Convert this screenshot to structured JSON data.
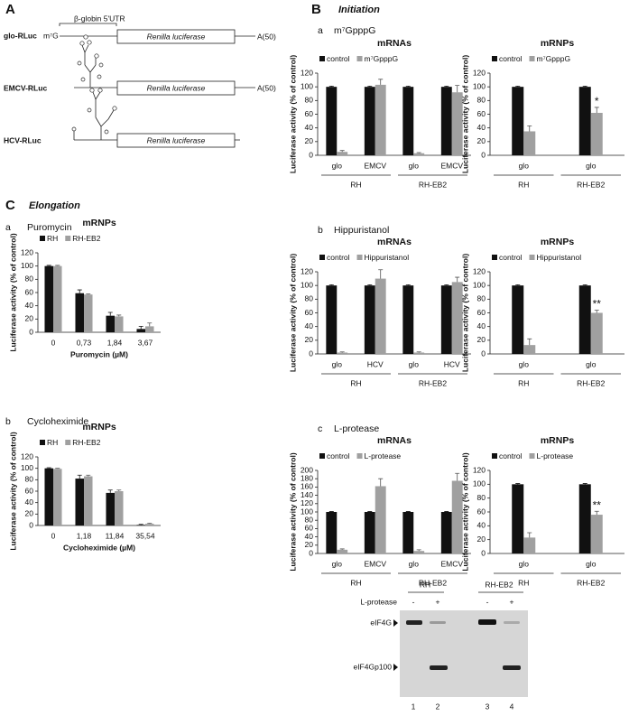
{
  "panels": {
    "A": "A",
    "B": "B",
    "C": "C",
    "B_title": "Initiation",
    "C_title": "Elongation"
  },
  "constructs": {
    "glo": {
      "name": "glo-RLuc",
      "cap": "m⁷G",
      "utr": "β-globin 5'UTR",
      "orf": "Renilla luciferase",
      "tail": "A(50)"
    },
    "emcv": {
      "name": "EMCV-RLuc",
      "orf": "Renilla luciferase",
      "tail": "A(50)"
    },
    "hcv": {
      "name": "HCV-RLuc",
      "orf": "Renilla luciferase"
    }
  },
  "chart_data": [
    {
      "type": "bar",
      "panel": "a",
      "subtitle": "m⁷GpppG",
      "title": "mRNAs",
      "ylabel": "Luciferase activity (% of control)",
      "categories": [
        "glo",
        "EMCV",
        "glo",
        "EMCV"
      ],
      "group_labels": [
        "RH",
        "RH-EB2"
      ],
      "ylim": [
        0,
        120
      ],
      "yticks": [
        0,
        20,
        40,
        60,
        80,
        100,
        120
      ],
      "series": [
        {
          "name": "control",
          "color": "#111111",
          "values": [
            100,
            100,
            100,
            100
          ],
          "errors": [
            1,
            1,
            1,
            1
          ]
        },
        {
          "name": "m⁷GpppG",
          "color": "#a0a0a0",
          "values": [
            5,
            103,
            3,
            92
          ],
          "errors": [
            2,
            8,
            1,
            10
          ]
        }
      ]
    },
    {
      "type": "bar",
      "title": "mRNPs",
      "ylabel": "Luciferase activity (% of control)",
      "categories": [
        "glo",
        "glo"
      ],
      "group_labels": [
        "RH",
        "RH-EB2"
      ],
      "ylim": [
        0,
        120
      ],
      "yticks": [
        0,
        20,
        40,
        60,
        80,
        100,
        120
      ],
      "series": [
        {
          "name": "control",
          "color": "#111111",
          "values": [
            100,
            100
          ],
          "errors": [
            1,
            1
          ]
        },
        {
          "name": "m⁷GpppG",
          "color": "#a0a0a0",
          "values": [
            35,
            62
          ],
          "errors": [
            8,
            8
          ],
          "significance": [
            null,
            "*"
          ]
        }
      ]
    },
    {
      "type": "bar",
      "panel": "b",
      "subtitle": "Hippuristanol",
      "title": "mRNAs",
      "ylabel": "Luciferase activity (% of control)",
      "categories": [
        "glo",
        "HCV",
        "glo",
        "HCV"
      ],
      "group_labels": [
        "RH",
        "RH-EB2"
      ],
      "ylim": [
        0,
        120
      ],
      "yticks": [
        0,
        20,
        40,
        60,
        80,
        100,
        120
      ],
      "series": [
        {
          "name": "control",
          "color": "#111111",
          "values": [
            100,
            100,
            100,
            100
          ],
          "errors": [
            1,
            1,
            1,
            1
          ]
        },
        {
          "name": "Hippuristanol",
          "color": "#a0a0a0",
          "values": [
            2,
            110,
            2,
            105
          ],
          "errors": [
            1,
            13,
            1,
            7
          ]
        }
      ]
    },
    {
      "type": "bar",
      "title": "mRNPs",
      "ylabel": "Luciferase activity (% of control)",
      "categories": [
        "glo",
        "glo"
      ],
      "group_labels": [
        "RH",
        "RH-EB2"
      ],
      "ylim": [
        0,
        120
      ],
      "yticks": [
        0,
        20,
        40,
        60,
        80,
        100,
        120
      ],
      "series": [
        {
          "name": "control",
          "color": "#111111",
          "values": [
            100,
            100
          ],
          "errors": [
            1,
            1
          ]
        },
        {
          "name": "Hippuristanol",
          "color": "#a0a0a0",
          "values": [
            13,
            60
          ],
          "errors": [
            9,
            4
          ],
          "significance": [
            null,
            "**"
          ]
        }
      ]
    },
    {
      "type": "bar",
      "panel": "c",
      "subtitle": "L-protease",
      "title": "mRNAs",
      "ylabel": "Luciferase activity (% of control)",
      "categories": [
        "glo",
        "EMCV",
        "glo",
        "EMCV"
      ],
      "group_labels": [
        "RH",
        "RH-EB2"
      ],
      "ylim": [
        0,
        200
      ],
      "yticks": [
        0,
        20,
        40,
        60,
        80,
        100,
        120,
        140,
        160,
        180,
        200
      ],
      "series": [
        {
          "name": "control",
          "color": "#111111",
          "values": [
            100,
            100,
            100,
            100
          ],
          "errors": [
            1,
            1,
            1,
            1
          ]
        },
        {
          "name": "L-protease",
          "color": "#a0a0a0",
          "values": [
            9,
            162,
            6,
            175
          ],
          "errors": [
            2,
            18,
            3,
            18
          ]
        }
      ]
    },
    {
      "type": "bar",
      "title": "mRNPs",
      "ylabel": "Luciferase activity (% of control)",
      "categories": [
        "glo",
        "glo"
      ],
      "group_labels": [
        "RH",
        "RH-EB2"
      ],
      "ylim": [
        0,
        120
      ],
      "yticks": [
        0,
        20,
        40,
        60,
        80,
        100,
        120
      ],
      "series": [
        {
          "name": "control",
          "color": "#111111",
          "values": [
            100,
            100
          ],
          "errors": [
            1,
            1
          ]
        },
        {
          "name": "L-protease",
          "color": "#a0a0a0",
          "values": [
            23,
            56
          ],
          "errors": [
            7,
            5
          ],
          "significance": [
            null,
            "**"
          ]
        }
      ]
    },
    {
      "type": "bar",
      "panel": "a",
      "subtitle": "Puromycin",
      "title": "mRNPs",
      "ylabel": "Luciferase activity (% of control)",
      "xlabel": "Puromycin (µM)",
      "categories": [
        "0",
        "0,73",
        "1,84",
        "3,67"
      ],
      "ylim": [
        0,
        120
      ],
      "yticks": [
        0,
        20,
        40,
        60,
        80,
        100,
        120
      ],
      "series": [
        {
          "name": "RH",
          "color": "#111111",
          "values": [
            100,
            59,
            25,
            5
          ],
          "errors": [
            1,
            5,
            5,
            4
          ]
        },
        {
          "name": "RH-EB2",
          "color": "#a0a0a0",
          "values": [
            100,
            57,
            24,
            9
          ],
          "errors": [
            1,
            1,
            2,
            5
          ]
        }
      ]
    },
    {
      "type": "bar",
      "panel": "b",
      "subtitle": "Cycloheximide",
      "title": "mRNPs",
      "ylabel": "Luciferase activity (% of control)",
      "xlabel": "Cycloheximide (µM)",
      "categories": [
        "0",
        "1,18",
        "11,84",
        "35,54"
      ],
      "ylim": [
        0,
        120
      ],
      "yticks": [
        0,
        20,
        40,
        60,
        80,
        100,
        120
      ],
      "series": [
        {
          "name": "RH",
          "color": "#111111",
          "values": [
            100,
            82,
            57,
            1
          ],
          "errors": [
            1,
            6,
            5,
            1
          ]
        },
        {
          "name": "RH-EB2",
          "color": "#a0a0a0",
          "values": [
            99,
            86,
            60,
            3
          ],
          "errors": [
            1,
            2,
            2,
            1
          ]
        }
      ]
    }
  ],
  "blot": {
    "groups": [
      "RH",
      "RH-EB2"
    ],
    "treatment": "L-protease",
    "lanes": [
      "-",
      "+",
      "-",
      "+"
    ],
    "bands": [
      "eIF4G",
      "eIF4Gp100"
    ],
    "lane_numbers": [
      "1",
      "2",
      "3",
      "4"
    ]
  }
}
